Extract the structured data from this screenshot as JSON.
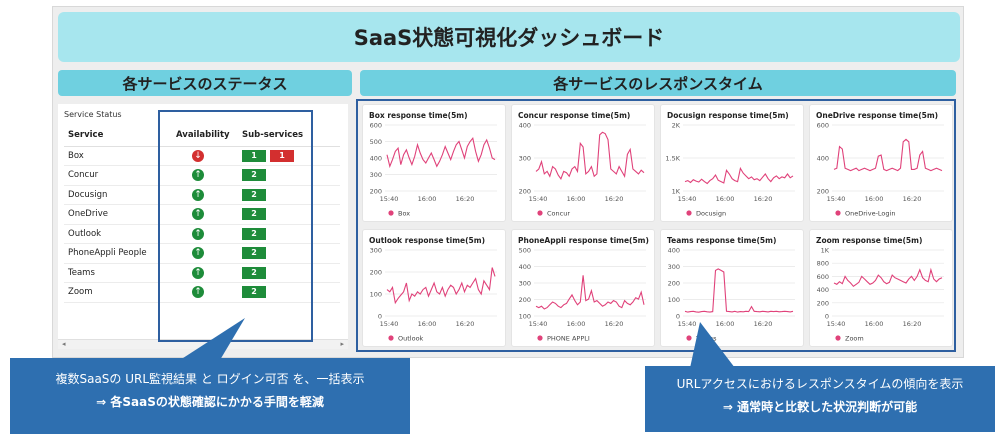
{
  "page_title": "SaaS状態可視化ダッシュボード",
  "status_section_title": "各サービスのステータス",
  "response_section_title": "各サービスのレスポンスタイム",
  "status_panel": {
    "caption": "Service Status",
    "columns": [
      "Service",
      "Availability",
      "Sub-services"
    ],
    "rows": [
      {
        "service": "Box",
        "availability": "down",
        "sub_ok": "1",
        "sub_ng": "1"
      },
      {
        "service": "Concur",
        "availability": "up",
        "sub_ok": "2",
        "sub_ng": ""
      },
      {
        "service": "Docusign",
        "availability": "up",
        "sub_ok": "2",
        "sub_ng": ""
      },
      {
        "service": "OneDrive",
        "availability": "up",
        "sub_ok": "2",
        "sub_ng": ""
      },
      {
        "service": "Outlook",
        "availability": "up",
        "sub_ok": "2",
        "sub_ng": ""
      },
      {
        "service": "PhoneAppli People",
        "availability": "up",
        "sub_ok": "2",
        "sub_ng": ""
      },
      {
        "service": "Teams",
        "availability": "up",
        "sub_ok": "2",
        "sub_ng": ""
      },
      {
        "service": "Zoom",
        "availability": "up",
        "sub_ok": "2",
        "sub_ng": ""
      }
    ],
    "scroll_left": "◂",
    "scroll_right": "▸"
  },
  "colors": {
    "up": "#1e8c3a",
    "down": "#d32f2f",
    "line": "#e0427a",
    "accent": "#2e6fb0"
  },
  "chart_data": [
    {
      "type": "line",
      "title": "Box response time(5m)",
      "legend": "Box",
      "x_ticks": [
        "15:40",
        "16:00",
        "16:20"
      ],
      "y_ticks": [
        "600",
        "500",
        "400",
        "300",
        "200"
      ],
      "ylim": [
        200,
        600
      ],
      "values": [
        420,
        350,
        390,
        440,
        460,
        360,
        420,
        450,
        400,
        360,
        410,
        480,
        430,
        390,
        370,
        400,
        430,
        390,
        350,
        380,
        420,
        470,
        430,
        390,
        440,
        480,
        500,
        450,
        400,
        470,
        500,
        520,
        440,
        380,
        420,
        480,
        510,
        460,
        400,
        390
      ]
    },
    {
      "type": "line",
      "title": "Concur response time(5m)",
      "legend": "Concur",
      "x_ticks": [
        "15:40",
        "16:00",
        "16:20"
      ],
      "y_ticks": [
        "400",
        "300",
        "200"
      ],
      "ylim": [
        150,
        420
      ],
      "values": [
        230,
        240,
        270,
        220,
        230,
        210,
        250,
        240,
        215,
        200,
        230,
        225,
        210,
        240,
        250,
        230,
        345,
        330,
        220,
        230,
        250,
        210,
        220,
        380,
        390,
        385,
        360,
        240,
        230,
        220,
        250,
        230,
        210,
        300,
        320,
        240,
        230,
        220,
        235,
        225
      ]
    },
    {
      "type": "line",
      "title": "Docusign response time(5m)",
      "legend": "Docusign",
      "x_ticks": [
        "15:40",
        "16:00",
        "16:20"
      ],
      "y_ticks": [
        "2K",
        "1.5K",
        "1K"
      ],
      "ylim": [
        700,
        2100
      ],
      "values": [
        900,
        920,
        880,
        940,
        910,
        890,
        950,
        900,
        860,
        920,
        960,
        1040,
        930,
        900,
        870,
        1140,
        1060,
        960,
        920,
        900,
        1180,
        1080,
        1020,
        960,
        1000,
        940,
        960,
        920,
        990,
        1060,
        960,
        900,
        980,
        1020,
        960,
        1000,
        980,
        1060,
        980,
        1020
      ]
    },
    {
      "type": "line",
      "title": "OneDrive response time(5m)",
      "legend": "OneDrive-Login",
      "x_ticks": [
        "15:40",
        "16:00",
        "16:20"
      ],
      "y_ticks": [
        "600",
        "400",
        "200"
      ],
      "ylim": [
        150,
        700
      ],
      "values": [
        330,
        340,
        520,
        500,
        340,
        330,
        320,
        330,
        340,
        320,
        330,
        340,
        330,
        320,
        330,
        340,
        440,
        450,
        330,
        320,
        330,
        340,
        330,
        320,
        340,
        560,
        580,
        560,
        330,
        330,
        340,
        450,
        480,
        340,
        330,
        320,
        330,
        340,
        330,
        320
      ]
    },
    {
      "type": "line",
      "title": "Outlook response time(5m)",
      "legend": "Outlook",
      "x_ticks": [
        "15:40",
        "16:00",
        "16:20"
      ],
      "y_ticks": [
        "300",
        "200",
        "100",
        "0"
      ],
      "ylim": [
        0,
        300
      ],
      "values": [
        120,
        110,
        130,
        60,
        80,
        95,
        110,
        150,
        70,
        100,
        90,
        110,
        100,
        120,
        130,
        90,
        120,
        150,
        110,
        100,
        130,
        90,
        120,
        140,
        130,
        100,
        120,
        150,
        110,
        140,
        130,
        150,
        170,
        120,
        100,
        160,
        140,
        120,
        220,
        180
      ]
    },
    {
      "type": "line",
      "title": "PhoneAppli response time(5m)",
      "legend": "PHONE APPLI",
      "x_ticks": [
        "15:40",
        "16:00",
        "16:20"
      ],
      "y_ticks": [
        "500",
        "400",
        "300",
        "200",
        "100"
      ],
      "ylim": [
        50,
        520
      ],
      "values": [
        120,
        110,
        120,
        100,
        110,
        130,
        150,
        140,
        120,
        110,
        130,
        140,
        170,
        200,
        160,
        130,
        150,
        340,
        160,
        170,
        230,
        150,
        160,
        140,
        120,
        130,
        150,
        140,
        160,
        150,
        120,
        110,
        160,
        140,
        130,
        150,
        180,
        170,
        220,
        130
      ]
    },
    {
      "type": "line",
      "title": "Teams response time(5m)",
      "legend": "Teams",
      "x_ticks": [
        "15:40",
        "16:00",
        "16:20"
      ],
      "y_ticks": [
        "400",
        "300",
        "200",
        "100",
        "0"
      ],
      "ylim": [
        0,
        420
      ],
      "values": [
        30,
        25,
        28,
        30,
        26,
        24,
        28,
        30,
        27,
        25,
        28,
        290,
        300,
        290,
        280,
        30,
        28,
        26,
        30,
        25,
        28,
        27,
        30,
        28,
        60,
        30,
        28,
        27,
        30,
        28,
        26,
        30,
        28,
        30,
        27,
        28,
        30,
        28,
        26,
        30
      ]
    },
    {
      "type": "line",
      "title": "Zoom response time(5m)",
      "legend": "Zoom",
      "x_ticks": [
        "15:40",
        "16:00",
        "16:20"
      ],
      "y_ticks": [
        "1K",
        "800",
        "600",
        "400",
        "200",
        "0"
      ],
      "ylim": [
        0,
        1000
      ],
      "values": [
        500,
        480,
        520,
        490,
        600,
        540,
        500,
        450,
        480,
        510,
        600,
        560,
        520,
        480,
        500,
        540,
        620,
        580,
        520,
        490,
        510,
        620,
        580,
        560,
        540,
        520,
        500,
        560,
        600,
        540,
        600,
        700,
        580,
        540,
        520,
        700,
        560,
        520,
        560,
        580
      ]
    }
  ],
  "callout_left": {
    "line1": "複数SaaSの URL監視結果 と ログイン可否 を、一括表示",
    "line2": "⇒  各SaaSの状態確認にかかる手間を軽減"
  },
  "callout_right": {
    "line1": "URLアクセスにおけるレスポンスタイムの傾向を表示",
    "line2": "⇒  通常時と比較した状況判断が可能"
  }
}
